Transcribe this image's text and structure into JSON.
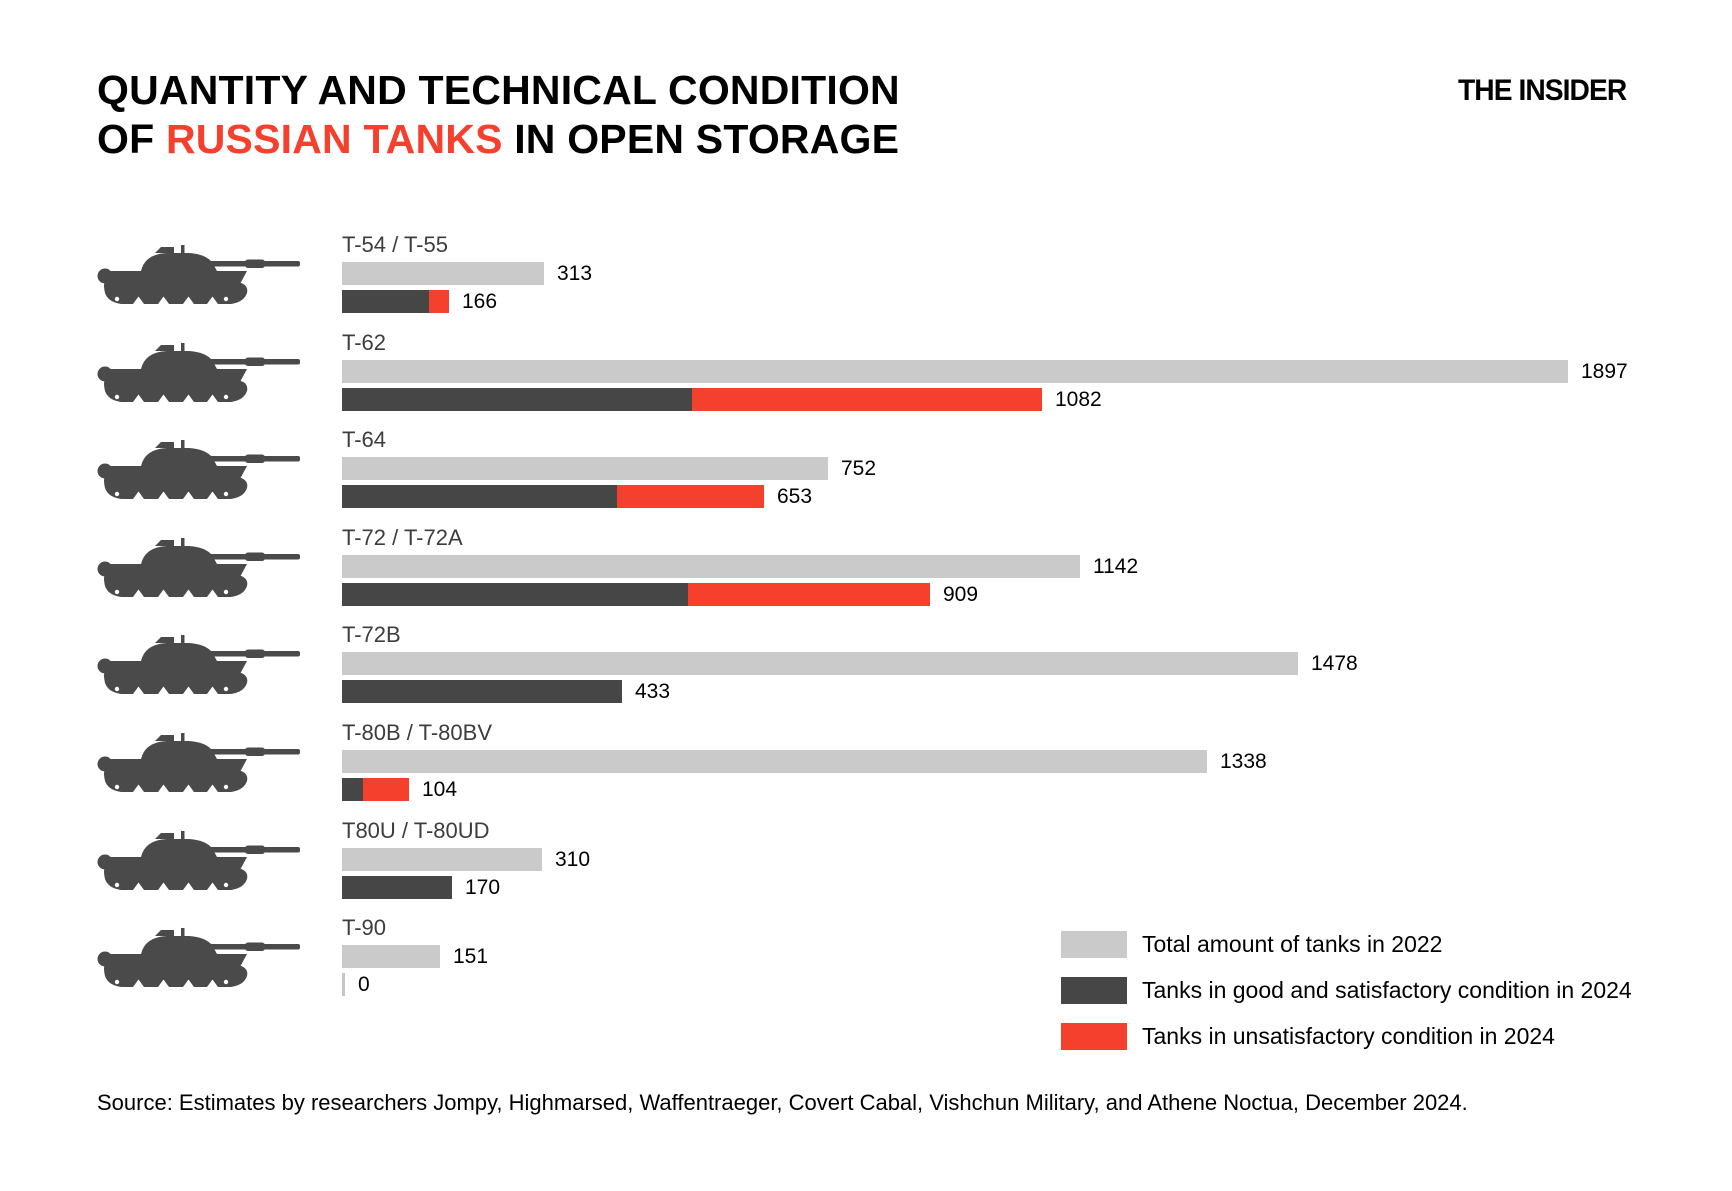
{
  "title": {
    "line1": "QUANTITY AND TECHNICAL CONDITION",
    "line2_prefix": "OF ",
    "line2_accent": "RUSSIAN TANKS",
    "line2_suffix": " IN OPEN STORAGE"
  },
  "logo": "THE INSIDER",
  "source": "Source: Estimates by researchers Jompy, Highmarsed, Waffentraeger, Covert Cabal, Vishchun Military, and Athene Noctua, December 2024.",
  "colors": {
    "accent_red": "#f5402e",
    "bar_gray": "#cacaca",
    "bar_dark": "#464646",
    "tank_silhouette": "#4a4a4a"
  },
  "legend": {
    "items": [
      {
        "label": "Total amount of tanks in 2022",
        "color": "#cacaca"
      },
      {
        "label": "Tanks in good and satisfactory condition in 2024",
        "color": "#464646"
      },
      {
        "label": "Tanks in unsatisfactory condition in 2024",
        "color": "#f5402e"
      }
    ]
  },
  "chart_data": {
    "type": "bar",
    "orientation": "horizontal",
    "title": "QUANTITY AND TECHNICAL CONDITION OF RUSSIAN TANKS IN OPEN STORAGE",
    "legend_position": "bottom-right",
    "grid": false,
    "value_labels": "end of each bar",
    "categories": [
      "T-54 / T-55",
      "T-62",
      "T-64",
      "T-72 / T-72A",
      "T-72B",
      "T-80B / T-80BV",
      "T80U / T-80UD",
      "T-90"
    ],
    "series": [
      {
        "name": "Total amount of tanks in 2022",
        "color": "#cacaca",
        "values": [
          313,
          1897,
          752,
          1142,
          1478,
          1338,
          310,
          151
        ]
      },
      {
        "name": "Tanks in good and satisfactory condition in 2024",
        "color": "#464646",
        "estimated_from_bar_lengths": true,
        "values": [
          135,
          541,
          426,
          535,
          433,
          33,
          170,
          0
        ]
      },
      {
        "name": "Tanks in unsatisfactory condition in 2024",
        "color": "#f5402e",
        "estimated_from_bar_lengths": true,
        "values": [
          31,
          541,
          227,
          374,
          0,
          71,
          0,
          0
        ]
      }
    ],
    "labeled_totals_2024": [
      166,
      1082,
      653,
      909,
      433,
      104,
      170,
      0
    ],
    "rows": [
      {
        "label": "T-54 / T-55",
        "total_2022": 313,
        "total_2024": 166,
        "good_2024_est": 135,
        "unsat_2024_est": 31
      },
      {
        "label": "T-62",
        "total_2022": 1897,
        "total_2024": 1082,
        "good_2024_est": 541,
        "unsat_2024_est": 541
      },
      {
        "label": "T-64",
        "total_2022": 752,
        "total_2024": 653,
        "good_2024_est": 426,
        "unsat_2024_est": 227
      },
      {
        "label": "T-72 / T-72A",
        "total_2022": 1142,
        "total_2024": 909,
        "good_2024_est": 535,
        "unsat_2024_est": 374
      },
      {
        "label": "T-72B",
        "total_2022": 1478,
        "total_2024": 433,
        "good_2024_est": 433,
        "unsat_2024_est": 0
      },
      {
        "label": "T-80B / T-80BV",
        "total_2022": 1338,
        "total_2024": 104,
        "good_2024_est": 33,
        "unsat_2024_est": 71
      },
      {
        "label": "T80U / T-80UD",
        "total_2022": 310,
        "total_2024": 170,
        "good_2024_est": 170,
        "unsat_2024_est": 0
      },
      {
        "label": "T-90",
        "total_2022": 151,
        "total_2024": 0,
        "good_2024_est": 0,
        "unsat_2024_est": 0
      }
    ]
  }
}
